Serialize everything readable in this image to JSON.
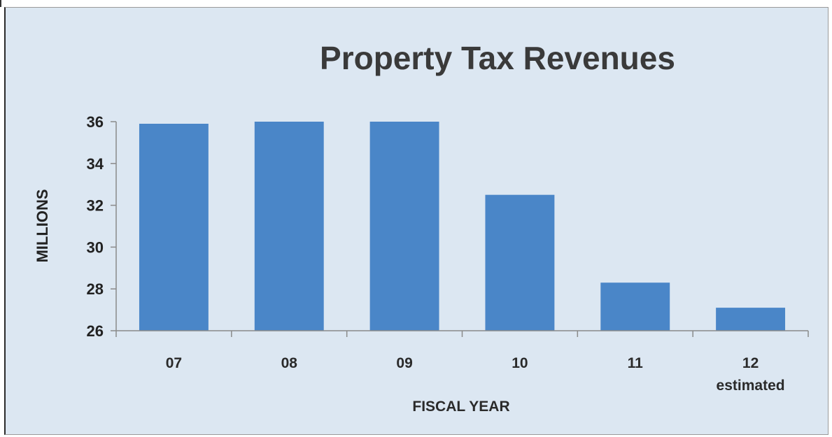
{
  "chart_data": {
    "type": "bar",
    "title": "Property Tax Revenues",
    "xlabel": "FISCAL YEAR",
    "ylabel": "MILLIONS",
    "categories": [
      "07",
      "08",
      "09",
      "10",
      "11",
      "12"
    ],
    "category_sublabels": [
      "",
      "",
      "",
      "",
      "",
      "estimated"
    ],
    "values": [
      35.9,
      36.0,
      36.0,
      32.5,
      28.3,
      27.1
    ],
    "ylim": [
      26,
      36
    ],
    "yticks": [
      26,
      28,
      30,
      32,
      34,
      36
    ],
    "grid": false,
    "legend": "none",
    "colors": {
      "bar": "#4a86c8",
      "background": "#dce7f2",
      "text": "#3a3a3a",
      "axis": "#8a8a8a"
    }
  }
}
